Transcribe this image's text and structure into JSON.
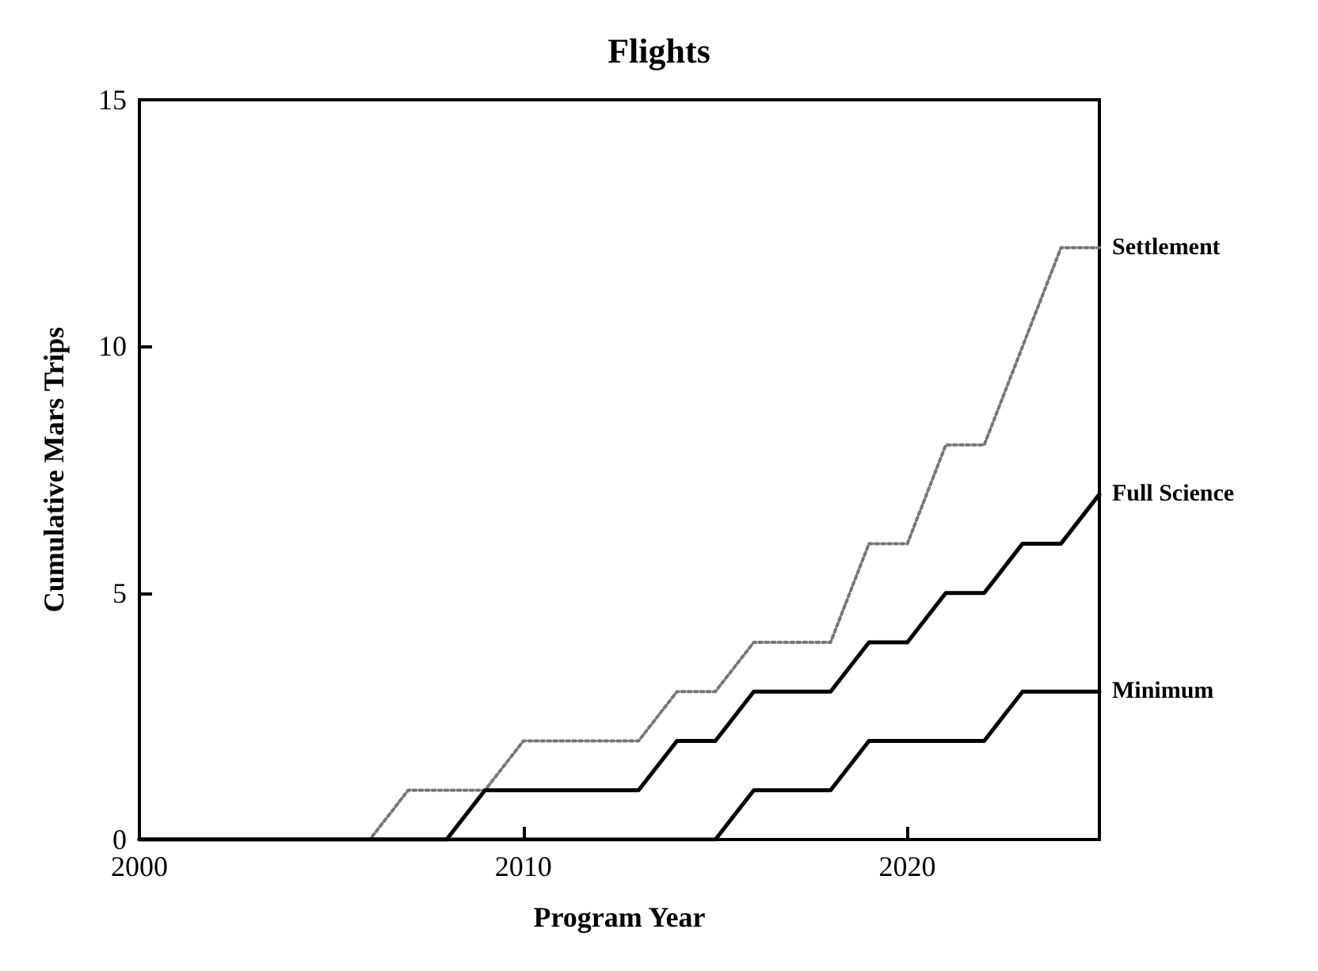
{
  "chart_data": {
    "type": "line",
    "title": "Flights",
    "xlabel": "Program Year",
    "ylabel": "Cumulative Mars Trips",
    "xlim": [
      2000,
      2025
    ],
    "xticks": [
      2000,
      2010,
      2020
    ],
    "ylim": [
      0,
      15
    ],
    "yticks": [
      0,
      5,
      10,
      15
    ],
    "grid": false,
    "legend": false,
    "marker": "none",
    "series": [
      {
        "name": "Settlement",
        "color": "#777777",
        "line_style": "dotted",
        "x": [
          2000,
          2006,
          2007,
          2009,
          2010,
          2013,
          2014,
          2015,
          2016,
          2018,
          2019,
          2020,
          2021,
          2022,
          2023,
          2024,
          2025
        ],
        "values": [
          0,
          0,
          1,
          1,
          2,
          2,
          3,
          3,
          4,
          4,
          6,
          6,
          8,
          8,
          10,
          12,
          12
        ]
      },
      {
        "name": "Full Science",
        "color": "#000000",
        "line_style": "solid",
        "x": [
          2000,
          2008,
          2009,
          2013,
          2014,
          2015,
          2016,
          2018,
          2019,
          2020,
          2021,
          2022,
          2023,
          2024,
          2025
        ],
        "values": [
          0,
          0,
          1,
          1,
          2,
          2,
          3,
          3,
          4,
          4,
          5,
          5,
          6,
          6,
          7
        ]
      },
      {
        "name": "Minimum",
        "color": "#000000",
        "line_style": "solid",
        "x": [
          2000,
          2015,
          2016,
          2018,
          2019,
          2022,
          2023,
          2025
        ],
        "values": [
          0,
          0,
          1,
          1,
          2,
          2,
          3,
          3
        ]
      }
    ]
  }
}
